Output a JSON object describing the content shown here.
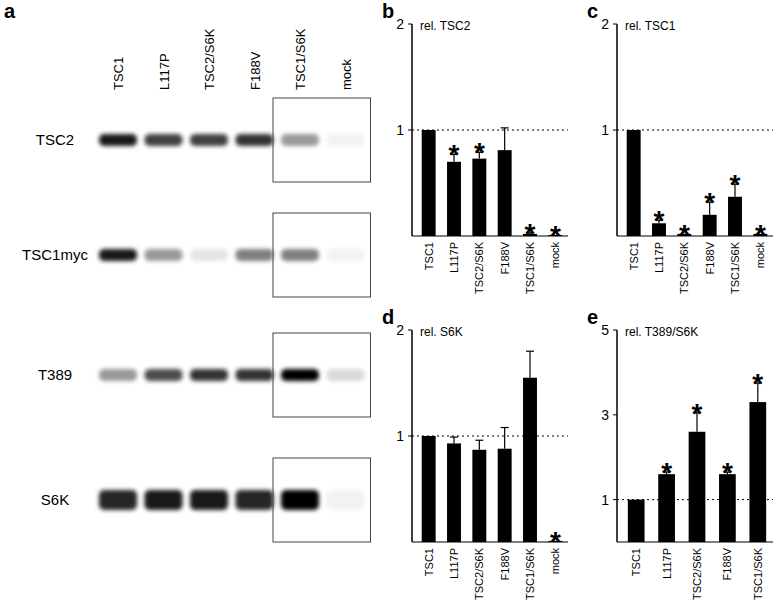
{
  "chart_data": [
    {
      "type": "blot",
      "panel": "a",
      "categories": [
        "TSC1",
        "L117P",
        "TSC2/S6K",
        "F188V",
        "TSC1/S6K",
        "mock"
      ],
      "rows": [
        {
          "name": "TSC2",
          "values": [
            0.9,
            0.75,
            0.75,
            0.8,
            0.4,
            0.05
          ]
        },
        {
          "name": "TSC1myc",
          "values": [
            0.9,
            0.4,
            0.1,
            0.5,
            0.5,
            0.05
          ]
        },
        {
          "name": "T389",
          "values": [
            0.4,
            0.7,
            0.8,
            0.8,
            1,
            0.15
          ]
        },
        {
          "name": "S6K",
          "values": [
            0.85,
            0.9,
            0.9,
            0.85,
            1,
            0.05
          ]
        }
      ]
    },
    {
      "type": "bar",
      "panel": "b",
      "y_label": "rel. TSC2",
      "categories": [
        "TSC1",
        "L117P",
        "TSC2/S6K",
        "F188V",
        "TSC1/S6K",
        "mock"
      ],
      "values": [
        1,
        0.7,
        0.73,
        0.81,
        0.02,
        0.01
      ],
      "errors": [
        null,
        0.07,
        0.06,
        0.21,
        0.01,
        null
      ],
      "significance": [
        null,
        "*",
        "*",
        null,
        "*",
        "*"
      ],
      "color": "#000000",
      "ylim": [
        0,
        2
      ],
      "yticks": [
        1,
        2
      ],
      "reference_line": 1
    },
    {
      "type": "bar",
      "panel": "c",
      "y_label": "rel. TSC1",
      "categories": [
        "TSC1",
        "L117P",
        "TSC2/S6K",
        "F188V",
        "TSC1/S6K",
        "mock"
      ],
      "values": [
        1,
        0.12,
        0.02,
        0.2,
        0.37,
        0.02
      ],
      "errors": [
        null,
        0.03,
        null,
        0.12,
        0.12,
        null
      ],
      "significance": [
        null,
        "*",
        "*",
        "*",
        "*",
        "*"
      ],
      "color": "#000000",
      "ylim": [
        0,
        2
      ],
      "yticks": [
        1,
        2
      ],
      "reference_line": 1
    },
    {
      "type": "bar",
      "panel": "d",
      "y_label": "rel. S6K",
      "categories": [
        "TSC1",
        "L117P",
        "TSC2/S6K",
        "F188V",
        "TSC1/S6K",
        "mock"
      ],
      "values": [
        1,
        0.93,
        0.87,
        0.88,
        1.55,
        0.01
      ],
      "errors": [
        null,
        0.06,
        0.09,
        0.2,
        0.25,
        null
      ],
      "significance": [
        null,
        null,
        null,
        null,
        null,
        "*"
      ],
      "color": "#000000",
      "ylim": [
        0,
        2
      ],
      "yticks": [
        1,
        2
      ],
      "reference_line": 1
    },
    {
      "type": "bar",
      "panel": "e",
      "y_label": "rel. T389/S6K",
      "categories": [
        "TSC1",
        "L117P",
        "TSC2/S6K",
        "F188V",
        "TSC1/S6K"
      ],
      "values": [
        1,
        1.6,
        2.6,
        1.6,
        3.3
      ],
      "errors": [
        null,
        0.05,
        0.45,
        0.05,
        0.45
      ],
      "significance": [
        null,
        "*",
        "*",
        "*",
        "*"
      ],
      "color": "#000000",
      "ylim": [
        0,
        5
      ],
      "yticks": [
        1,
        3,
        5
      ],
      "reference_line": 1
    }
  ]
}
